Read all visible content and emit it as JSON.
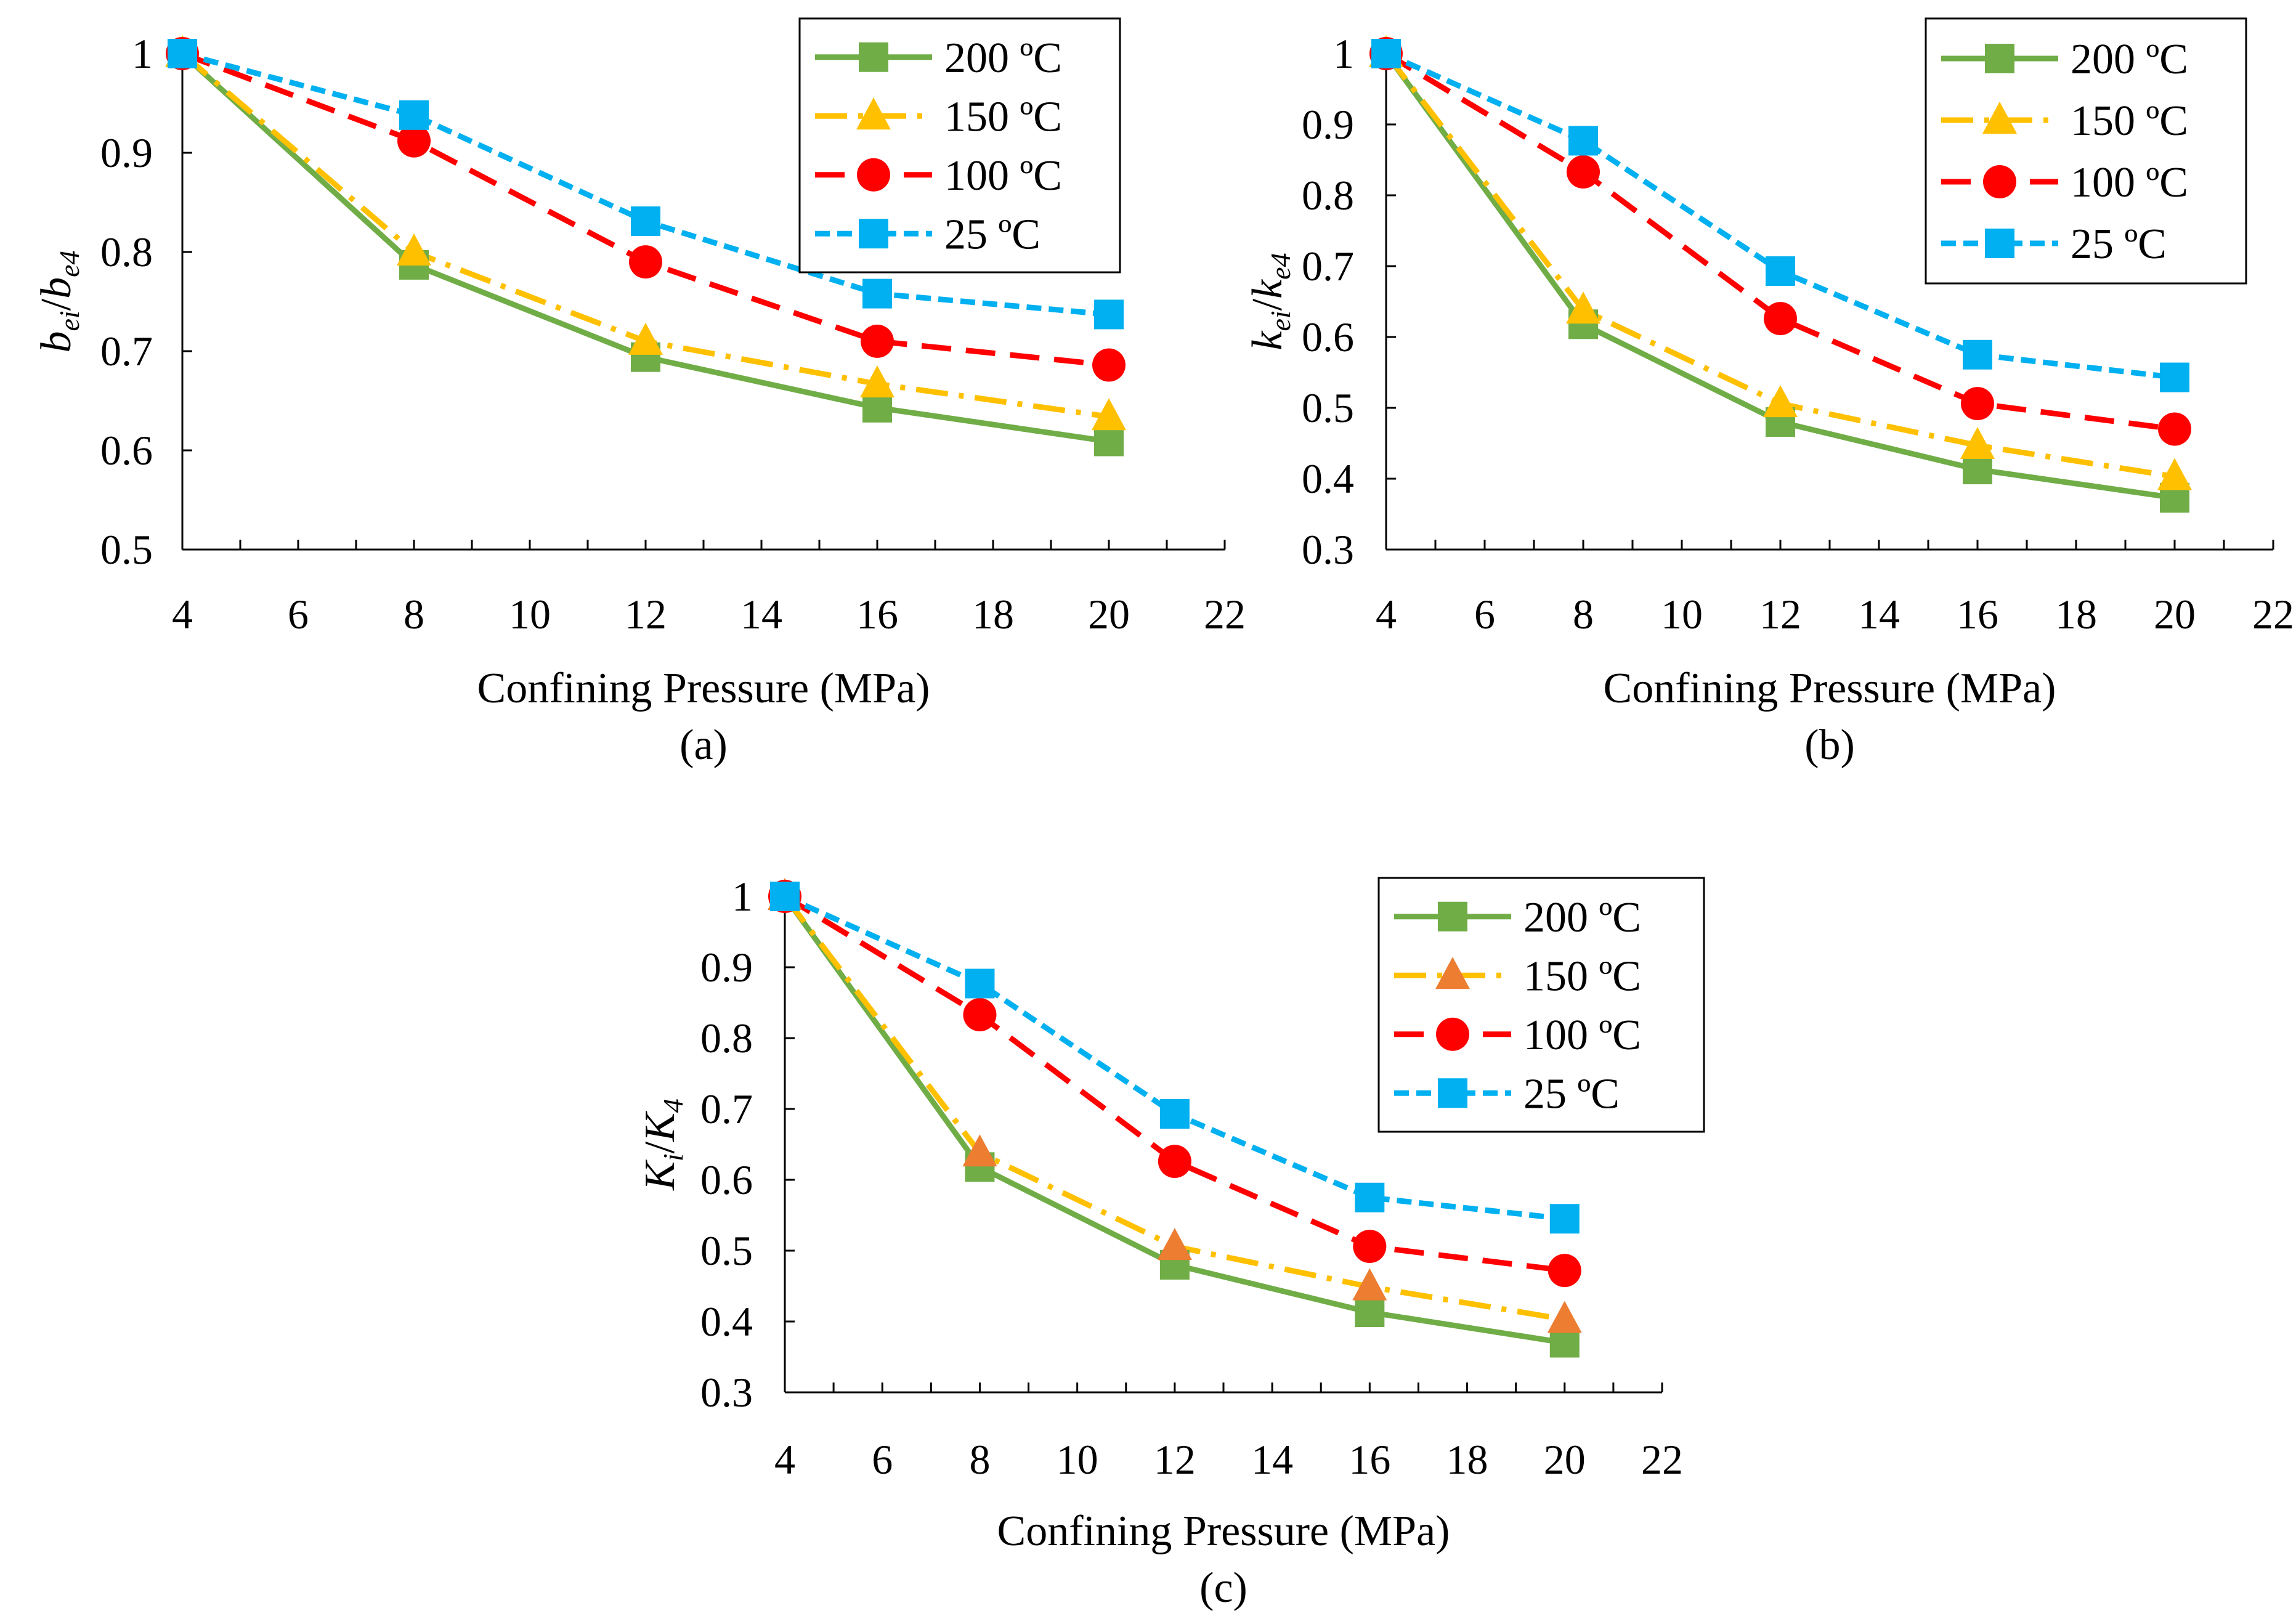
{
  "colors": {
    "t200": "#70AD47",
    "t150": "#FFC000",
    "t150_marker_c": "#ED7D31",
    "t100": "#FF0000",
    "t25": "#00B0F0"
  },
  "chart_data": [
    {
      "id": "a",
      "type": "line",
      "caption": "(a)",
      "xlabel": "Confining Pressure (MPa)",
      "ylabel": {
        "main1": "b",
        "sub1": "ei",
        "slash": "/",
        "main2": "b",
        "sub2": "e4"
      },
      "xlim": [
        4,
        22
      ],
      "ylim": [
        0.5,
        1.0
      ],
      "xticks": [
        4,
        6,
        8,
        10,
        12,
        14,
        16,
        18,
        20,
        22
      ],
      "xtick_labels": [
        "4",
        "6",
        "8",
        "10",
        "12",
        "14",
        "16",
        "18",
        "20",
        "22"
      ],
      "yticks": [
        0.5,
        0.6,
        0.7,
        0.8,
        0.9,
        1.0
      ],
      "ytick_labels": [
        "0.5",
        "0.6",
        "0.7",
        "0.8",
        "0.9",
        "1"
      ],
      "x": [
        4,
        8,
        12,
        16,
        20
      ],
      "legend_position": "top-right",
      "series": [
        {
          "name": "200 ºC",
          "values": [
            1.0,
            0.787,
            0.694,
            0.643,
            0.609
          ],
          "marker": "square",
          "dash": "solid"
        },
        {
          "name": "150 ºC",
          "values": [
            1.0,
            0.8,
            0.71,
            0.667,
            0.634
          ],
          "marker": "triangle",
          "dash": "dashdot"
        },
        {
          "name": "100 ºC",
          "values": [
            1.0,
            0.912,
            0.79,
            0.71,
            0.686
          ],
          "marker": "circle",
          "dash": "dash"
        },
        {
          "name": "25 ºC",
          "values": [
            1.0,
            0.938,
            0.831,
            0.758,
            0.737
          ],
          "marker": "square",
          "dash": "shortdash"
        }
      ]
    },
    {
      "id": "b",
      "type": "line",
      "caption": "(b)",
      "xlabel": "Confining Pressure (MPa)",
      "ylabel": {
        "main1": "k",
        "sub1": "ei",
        "slash": "/",
        "main2": "k",
        "sub2": "e4"
      },
      "xlim": [
        4,
        22
      ],
      "ylim": [
        0.3,
        1.0
      ],
      "xticks": [
        4,
        6,
        8,
        10,
        12,
        14,
        16,
        18,
        20,
        22
      ],
      "xtick_labels": [
        "4",
        "6",
        "8",
        "10",
        "12",
        "14",
        "16",
        "18",
        "20",
        "22"
      ],
      "yticks": [
        0.3,
        0.4,
        0.5,
        0.6,
        0.7,
        0.8,
        0.9,
        1.0
      ],
      "ytick_labels": [
        "0.3",
        "0.4",
        "0.5",
        "0.6",
        "0.7",
        "0.8",
        "0.9",
        "1"
      ],
      "x": [
        4,
        8,
        12,
        16,
        20
      ],
      "legend_position": "top-right",
      "series": [
        {
          "name": "200 ºC",
          "values": [
            1.0,
            0.618,
            0.48,
            0.413,
            0.373
          ],
          "marker": "square",
          "dash": "solid"
        },
        {
          "name": "150 ºC",
          "values": [
            1.0,
            0.638,
            0.506,
            0.447,
            0.403
          ],
          "marker": "triangle",
          "dash": "dashdot"
        },
        {
          "name": "100 ºC",
          "values": [
            1.0,
            0.833,
            0.626,
            0.506,
            0.47
          ],
          "marker": "circle",
          "dash": "dash"
        },
        {
          "name": "25 ºC",
          "values": [
            1.0,
            0.877,
            0.693,
            0.575,
            0.543
          ],
          "marker": "square",
          "dash": "shortdash"
        }
      ]
    },
    {
      "id": "c",
      "type": "line",
      "caption": "(c)",
      "xlabel": "Confining Pressure (MPa)",
      "ylabel": {
        "main1": "K",
        "sub1": "i",
        "slash": "/",
        "main2": "K",
        "sub2": "4"
      },
      "xlim": [
        4,
        22
      ],
      "ylim": [
        0.3,
        1.0
      ],
      "xticks": [
        4,
        6,
        8,
        10,
        12,
        14,
        16,
        18,
        20,
        22
      ],
      "xtick_labels": [
        "4",
        "6",
        "8",
        "10",
        "12",
        "14",
        "16",
        "18",
        "20",
        "22"
      ],
      "yticks": [
        0.3,
        0.4,
        0.5,
        0.6,
        0.7,
        0.8,
        0.9,
        1.0
      ],
      "ytick_labels": [
        "0.3",
        "0.4",
        "0.5",
        "0.6",
        "0.7",
        "0.8",
        "0.9",
        "1"
      ],
      "x": [
        4,
        8,
        12,
        16,
        20
      ],
      "legend_position": "top-right",
      "series": [
        {
          "name": "200 ºC",
          "values": [
            1.0,
            0.618,
            0.48,
            0.413,
            0.37
          ],
          "marker": "square",
          "dash": "solid"
        },
        {
          "name": "150 ºC",
          "values": [
            1.0,
            0.638,
            0.506,
            0.449,
            0.403
          ],
          "marker": "triangle",
          "dash": "dashdot"
        },
        {
          "name": "100 ºC",
          "values": [
            1.0,
            0.833,
            0.626,
            0.506,
            0.472
          ],
          "marker": "circle",
          "dash": "dash"
        },
        {
          "name": "25 ºC",
          "values": [
            1.0,
            0.877,
            0.693,
            0.575,
            0.545
          ],
          "marker": "square",
          "dash": "shortdash"
        }
      ]
    }
  ]
}
